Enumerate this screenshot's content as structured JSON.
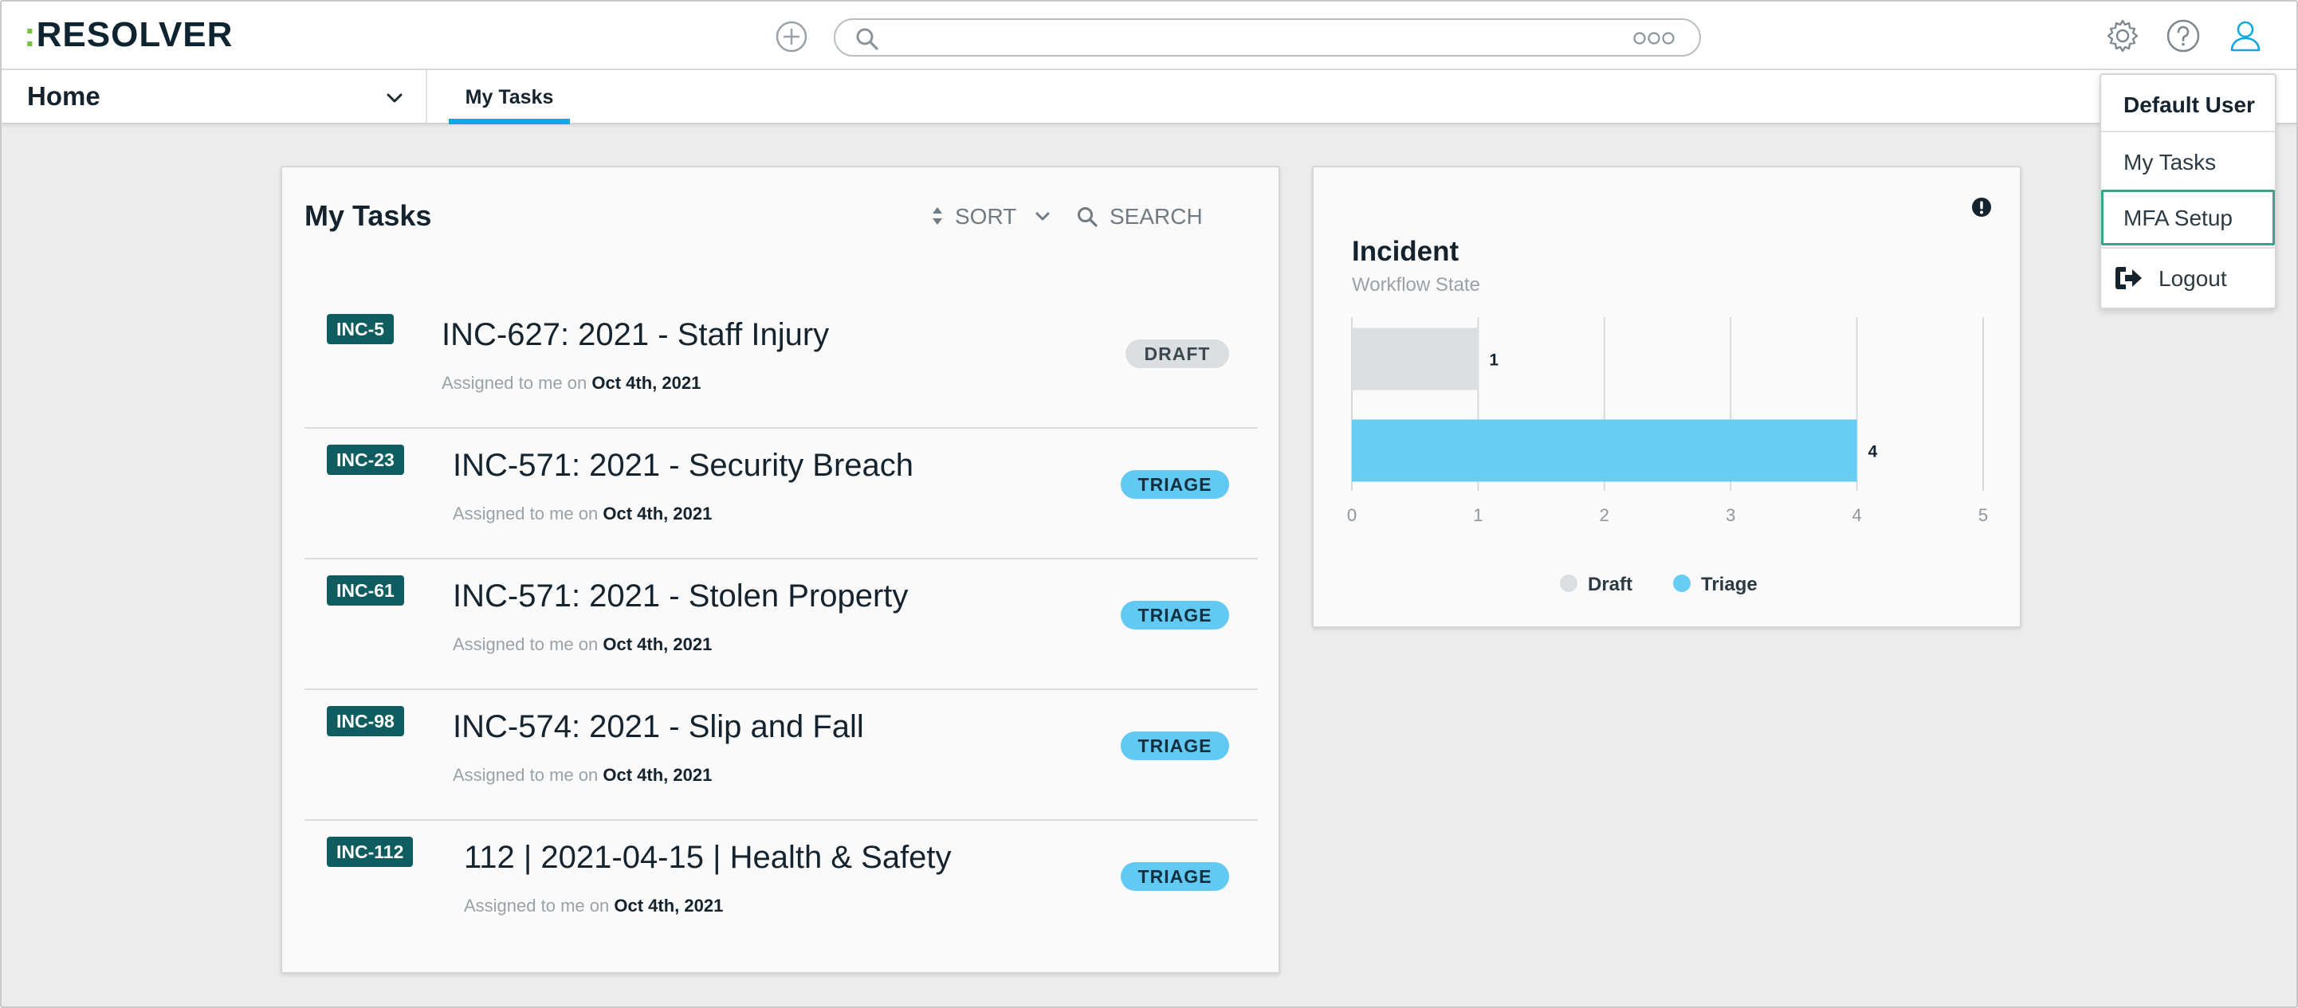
{
  "header": {
    "logo_prefix": ":",
    "logo_text": "RESOLVER",
    "search_placeholder": "",
    "icons": {
      "add": "plus-circle-icon",
      "search": "search-icon",
      "more": "more-options-icon",
      "settings": "gear-icon",
      "help": "help-icon",
      "user": "user-icon"
    }
  },
  "navbar": {
    "home_label": "Home",
    "tabs": [
      {
        "label": "My Tasks",
        "active": true
      }
    ]
  },
  "tasks_card": {
    "title": "My Tasks",
    "sort_label": "SORT",
    "search_label": "SEARCH",
    "items": [
      {
        "badge": "INC-5",
        "title": "INC-627: 2021 - Staff Injury",
        "meta_prefix": "Assigned to me on",
        "date": "Oct 4th, 2021",
        "state": "DRAFT"
      },
      {
        "badge": "INC-23",
        "title": "INC-571: 2021 - Security Breach",
        "meta_prefix": "Assigned to me on",
        "date": "Oct 4th, 2021",
        "state": "TRIAGE"
      },
      {
        "badge": "INC-61",
        "title": "INC-571: 2021 - Stolen Property",
        "meta_prefix": "Assigned to me on",
        "date": "Oct 4th, 2021",
        "state": "TRIAGE"
      },
      {
        "badge": "INC-98",
        "title": "INC-574: 2021 - Slip and Fall",
        "meta_prefix": "Assigned to me on",
        "date": "Oct 4th, 2021",
        "state": "TRIAGE"
      },
      {
        "badge": "INC-112",
        "title": "112 | 2021-04-15 | Health & Safety",
        "meta_prefix": "Assigned to me on",
        "date": "Oct 4th, 2021",
        "state": "TRIAGE"
      }
    ]
  },
  "chart_card": {
    "title": "Incident",
    "subtitle": "Workflow State"
  },
  "chart_data": {
    "type": "bar",
    "orientation": "horizontal",
    "title": "Incident",
    "subtitle": "Workflow State",
    "categories": [
      "Draft",
      "Triage"
    ],
    "values": [
      1,
      4
    ],
    "data_labels": [
      "1",
      "4"
    ],
    "xlim": [
      0,
      5
    ],
    "x_ticks": [
      "0",
      "1",
      "2",
      "3",
      "4",
      "5"
    ],
    "grid": true,
    "legend": {
      "placement": "bottom",
      "entries": [
        "Draft",
        "Triage"
      ]
    },
    "colors": {
      "Draft": "#dcdfe1",
      "Triage": "#67cdf3"
    }
  },
  "user_menu": {
    "user_name": "Default User",
    "items": [
      {
        "label": "My Tasks"
      },
      {
        "label": "MFA Setup",
        "focused": true
      },
      {
        "label": "Logout",
        "icon": "logout-icon"
      }
    ]
  },
  "colors": {
    "accent": "#12a7e0",
    "badge": "#0f5c61",
    "logo_dot": "#7ac142",
    "focus_ring": "#3aa389"
  }
}
